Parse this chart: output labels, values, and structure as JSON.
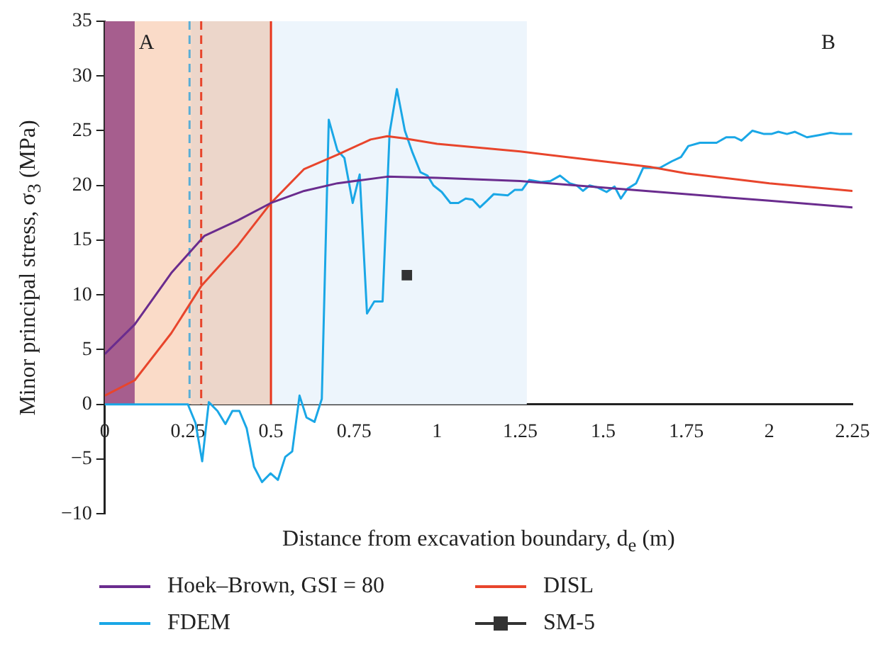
{
  "chart_data": {
    "type": "line",
    "xlabel": "Distance from excavation boundary, d$_{e}$ (m)",
    "ylabel": "Minor principal stress, σ$_{3}$ (MPa)",
    "xlim": [
      0,
      2.25
    ],
    "xticks": [
      0,
      0.25,
      0.5,
      0.75,
      1,
      1.25,
      1.5,
      1.75,
      2,
      2.25
    ],
    "ylim": [
      -10,
      35
    ],
    "yticks": [
      {
        "value": -10,
        "label": "−10"
      },
      {
        "value": -5,
        "label": "−5"
      },
      0,
      5,
      10,
      15,
      20,
      25,
      30,
      35
    ],
    "grid": false,
    "legend": "bottom",
    "annotations": [
      "A",
      "B"
    ],
    "bands": [
      {
        "axis": "x",
        "from": 0,
        "to": 0.09,
        "color": "#a65e8e"
      },
      {
        "axis": "x",
        "from": 0.09,
        "to": 0.5,
        "color": "#fadbc8"
      },
      {
        "axis": "x",
        "from": 0.26,
        "to": 0.5,
        "color": "#ecd6ca"
      },
      {
        "axis": "x",
        "from": 0.5,
        "to": 1.27,
        "color": "#edf5fc"
      }
    ],
    "ref_lines": [
      {
        "axis": "x",
        "value": 0.255,
        "color": "#5aaed6",
        "line_style": "dashed"
      },
      {
        "axis": "x",
        "value": 0.29,
        "color": "#e8452c",
        "line_style": "dashed"
      },
      {
        "axis": "x",
        "value": 0.5,
        "color": "#e8351c",
        "line_style": "solid"
      }
    ],
    "series": [
      {
        "name": "Hoek–Brown, GSI = 80",
        "color": "#6a2c8e",
        "marker": "none",
        "x": [
          0,
          0.09,
          0.2,
          0.3,
          0.4,
          0.5,
          0.6,
          0.7,
          0.85,
          1,
          1.25,
          1.5,
          1.75,
          2,
          2.25
        ],
        "values": [
          4.6,
          7.3,
          12,
          15.4,
          16.8,
          18.4,
          19.5,
          20.2,
          20.8,
          20.7,
          20.4,
          19.8,
          19.2,
          18.6,
          18
        ]
      },
      {
        "name": "DISL",
        "color": "#e8452c",
        "marker": "none",
        "x": [
          0,
          0.09,
          0.2,
          0.29,
          0.4,
          0.5,
          0.6,
          0.7,
          0.8,
          0.85,
          0.9,
          1,
          1.25,
          1.5,
          1.64,
          1.75,
          2,
          2.25
        ],
        "values": [
          0.8,
          2.2,
          6.5,
          10.8,
          14.5,
          18.4,
          21.5,
          22.8,
          24.2,
          24.5,
          24.3,
          23.8,
          23.1,
          22.2,
          21.7,
          21.1,
          20.2,
          19.5
        ]
      },
      {
        "name": "FDEM",
        "color": "#1aa7e6",
        "marker": "none",
        "x": [
          0,
          0.25,
          0.273,
          0.293,
          0.313,
          0.339,
          0.363,
          0.384,
          0.405,
          0.427,
          0.449,
          0.473,
          0.499,
          0.521,
          0.543,
          0.564,
          0.586,
          0.607,
          0.631,
          0.653,
          0.674,
          0.7,
          0.721,
          0.746,
          0.767,
          0.789,
          0.811,
          0.836,
          0.857,
          0.879,
          0.903,
          0.926,
          0.95,
          0.971,
          0.989,
          1.014,
          1.04,
          1.064,
          1.086,
          1.107,
          1.129,
          1.15,
          1.17,
          1.213,
          1.234,
          1.256,
          1.277,
          1.313,
          1.341,
          1.37,
          1.399,
          1.42,
          1.439,
          1.459,
          1.484,
          1.51,
          1.534,
          1.553,
          1.573,
          1.599,
          1.62,
          1.67,
          1.706,
          1.734,
          1.756,
          1.791,
          1.841,
          1.87,
          1.896,
          1.916,
          1.949,
          1.984,
          2.006,
          2.027,
          2.053,
          2.077,
          2.113,
          2.149,
          2.184,
          2.213,
          2.249
        ],
        "values": [
          0,
          0,
          -1.7,
          -5.2,
          0.2,
          -0.6,
          -1.8,
          -0.6,
          -0.6,
          -2.2,
          -5.7,
          -7.1,
          -6.3,
          -6.9,
          -4.8,
          -4.3,
          0.8,
          -1.2,
          -1.6,
          0.5,
          26,
          23.2,
          22.5,
          18.4,
          21,
          8.3,
          9.4,
          9.4,
          24.8,
          28.8,
          25,
          23,
          21.2,
          20.9,
          20,
          19.4,
          18.4,
          18.4,
          18.8,
          18.7,
          18,
          18.6,
          19.2,
          19.1,
          19.6,
          19.6,
          20.5,
          20.3,
          20.4,
          20.9,
          20.2,
          20,
          19.5,
          20,
          19.8,
          19.4,
          19.9,
          18.8,
          19.7,
          20.2,
          21.6,
          21.6,
          22.2,
          22.6,
          23.6,
          23.9,
          23.9,
          24.4,
          24.4,
          24.1,
          25,
          24.7,
          24.7,
          24.9,
          24.7,
          24.9,
          24.4,
          24.6,
          24.8,
          24.7,
          24.7
        ]
      },
      {
        "name": "SM-5",
        "type": "scatter",
        "color": "#333333",
        "marker": "square",
        "x": [
          0.909
        ],
        "values": [
          11.8
        ]
      }
    ]
  }
}
